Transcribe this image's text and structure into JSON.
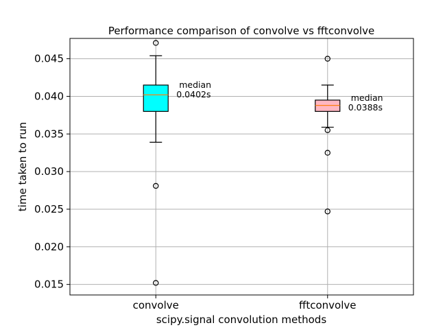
{
  "chart_data": {
    "type": "boxplot",
    "title": "Performance comparison of convolve vs fftconvolve",
    "xlabel": "scipy.signal convolution methods",
    "ylabel": "time taken to run",
    "ylim": [
      0.0136,
      0.0477
    ],
    "yticks": [
      0.015,
      0.02,
      0.025,
      0.03,
      0.035,
      0.04,
      0.045
    ],
    "ytick_labels": [
      "0.015",
      "0.020",
      "0.025",
      "0.030",
      "0.035",
      "0.040",
      "0.045"
    ],
    "grid": true,
    "categories": [
      "convolve",
      "fftconvolve"
    ],
    "boxes": [
      {
        "category": "convolve",
        "whisker_low": 0.0339,
        "q1": 0.038,
        "median": 0.0402,
        "q3": 0.0415,
        "whisker_high": 0.0454,
        "fliers": [
          0.0471,
          0.0281,
          0.0152
        ],
        "fill_color": "#00ffff",
        "median_color": "#ff7f0e",
        "annotation_title": "median",
        "annotation_value": "0.0402s"
      },
      {
        "category": "fftconvolve",
        "whisker_low": 0.0359,
        "q1": 0.038,
        "median": 0.0388,
        "q3": 0.0395,
        "whisker_high": 0.0415,
        "fliers": [
          0.045,
          0.0355,
          0.0325,
          0.0247
        ],
        "fill_color": "#ffb6c1",
        "median_color": "#ff7f0e",
        "annotation_title": "median",
        "annotation_value": "0.0388s"
      }
    ]
  }
}
